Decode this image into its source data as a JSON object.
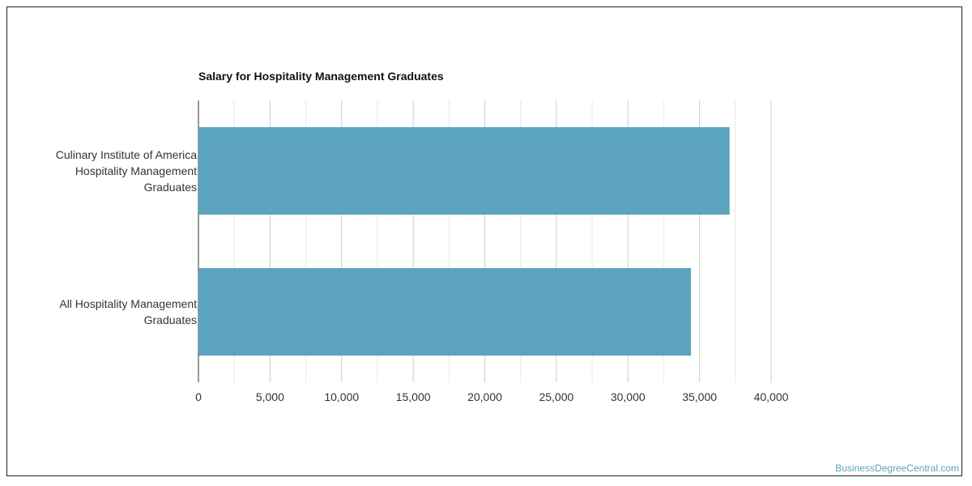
{
  "chart_data": {
    "type": "bar",
    "orientation": "horizontal",
    "title": "Salary for Hospitality Management Graduates",
    "xlabel": "",
    "ylabel": "",
    "categories": [
      [
        "Culinary Institute of America",
        "Hospitality Management",
        "Graduates"
      ],
      [
        "All Hospitality Management",
        "Graduates"
      ]
    ],
    "values": [
      37100,
      34400
    ],
    "xlim": [
      0,
      40000
    ],
    "ticks": [
      0,
      5000,
      10000,
      15000,
      20000,
      25000,
      30000,
      35000,
      40000
    ],
    "tick_labels": [
      "0",
      "5,000",
      "10,000",
      "15,000",
      "20,000",
      "25,000",
      "30,000",
      "35,000",
      "40,000"
    ],
    "bar_color": "#5ba3bf",
    "grid": true
  },
  "watermark": "BusinessDegreeCentral.com"
}
